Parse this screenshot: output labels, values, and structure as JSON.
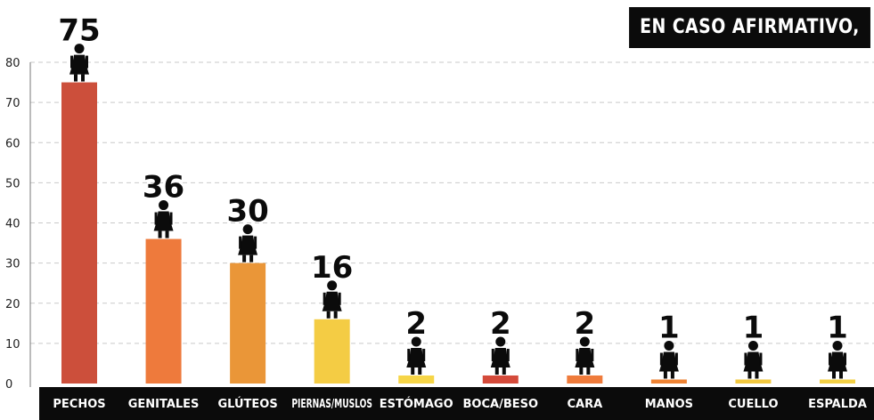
{
  "header": {
    "title": "EN CASO AFIRMATIVO,"
  },
  "chart_data": {
    "type": "bar",
    "title": "EN CASO AFIRMATIVO,",
    "categories": [
      "PECHOS",
      "GENITALES",
      "GLÚTEOS",
      "PIERNAS/MUSLOS",
      "ESTÓMAGO",
      "BOCA/BESO",
      "CARA",
      "MANOS",
      "CUELLO",
      "ESPALDA"
    ],
    "values": [
      75,
      36,
      30,
      16,
      2,
      2,
      2,
      1,
      1,
      1
    ],
    "data_labels": [
      "75",
      "36",
      "30",
      "16",
      "2",
      "2",
      "2",
      "1",
      "1",
      "1"
    ],
    "colors": [
      "#cc4f3b",
      "#ee7a3c",
      "#ea9638",
      "#f4cc44",
      "#f6d547",
      "#d44a3a",
      "#ef7b3b",
      "#ee8334",
      "#f2c83f",
      "#f3d045"
    ],
    "ylim": [
      0,
      80
    ],
    "yticks": [
      "0",
      "10",
      "20",
      "30",
      "40",
      "50",
      "60",
      "70",
      "80"
    ],
    "grid": true,
    "icon": "woman-figure-icon",
    "xlabel": "",
    "ylabel": ""
  }
}
